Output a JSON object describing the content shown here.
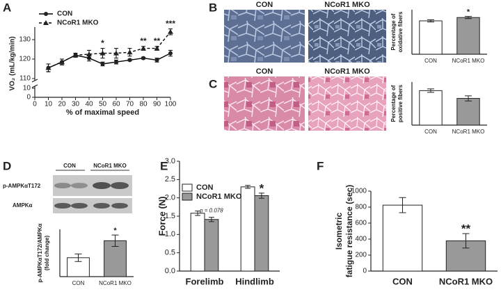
{
  "chart_data": [
    {
      "panel": "A",
      "type": "line",
      "y_label": "VO₂ (mL/kg/min)",
      "x_label": "% of maximal speed",
      "x": [
        10,
        20,
        30,
        40,
        50,
        60,
        70,
        80,
        90,
        100
      ],
      "xlim": [
        0,
        100
      ],
      "xticks": [
        0,
        10,
        20,
        30,
        40,
        50,
        60,
        70,
        80,
        90,
        100
      ],
      "ylim": [
        0,
        135
      ],
      "yticks": [
        0,
        10,
        110,
        120,
        130
      ],
      "axis_break": [
        10,
        110
      ],
      "legend": "upper left",
      "series": [
        {
          "name": "CON",
          "color": "#000000",
          "marker": "circle",
          "line_style": "solid",
          "values": [
            115.5,
            118.5,
            122,
            120.5,
            117.5,
            118.5,
            119.5,
            120.5,
            119.5,
            123
          ],
          "errors": [
            2,
            1.5,
            1,
            1.5,
            1,
            1,
            0.5,
            0.5,
            1,
            1.5
          ]
        },
        {
          "name": "NCoR1 MKO",
          "color": "#000000",
          "marker": "triangle",
          "line_style": "dashed",
          "values": [
            115.5,
            118.5,
            122,
            122.5,
            123,
            123,
            123.5,
            125.5,
            125.5,
            134
          ],
          "errors": [
            2,
            1.5,
            1,
            2,
            2.5,
            2.5,
            2,
            1,
            1,
            1.5
          ],
          "annotations": [
            null,
            null,
            null,
            null,
            "*",
            null,
            null,
            "**",
            "**",
            "***"
          ]
        }
      ]
    },
    {
      "panel": "B",
      "type": "bar",
      "image_labels": [
        "CON",
        "NCoR1 MKO"
      ],
      "y_label": [
        "Percentage of",
        "oxidative fibers"
      ],
      "categories": [
        "CON",
        "NCoR1 MKO"
      ],
      "values": [
        60,
        66
      ],
      "errors": [
        2,
        2
      ],
      "colors": [
        "#ffffff",
        "#999999"
      ],
      "ylim": [
        0,
        80
      ],
      "annotations": [
        null,
        "*"
      ]
    },
    {
      "panel": "C",
      "type": "bar",
      "image_labels": [
        "CON",
        "NCoR1 MKO"
      ],
      "y_label": [
        "Percentage of",
        "positive fibers"
      ],
      "categories": [
        "CON",
        "NCoR1 MKO"
      ],
      "values": [
        40,
        31
      ],
      "errors": [
        2,
        3
      ],
      "colors": [
        "#ffffff",
        "#999999"
      ],
      "ylim": [
        0,
        50
      ]
    },
    {
      "panel": "D",
      "type": "bar",
      "blot_headers": [
        "CON",
        "NCoR1 MKO"
      ],
      "blot_labels": [
        "p-AMPKαT172",
        "AMPKα"
      ],
      "y_label": [
        "p-AMPKαT172/AMPKα",
        "(fold change)"
      ],
      "categories": [
        "CON",
        "NCoR1 MKO"
      ],
      "values": [
        1.0,
        1.9
      ],
      "errors": [
        0.2,
        0.3
      ],
      "colors": [
        "#ffffff",
        "#999999"
      ],
      "ylim": [
        0,
        2.5
      ],
      "annotations": [
        null,
        "*"
      ]
    },
    {
      "panel": "E",
      "type": "bar",
      "y_label": "Force (N)",
      "categories": [
        "Forelimb",
        "Hindlimb"
      ],
      "ylim": [
        0,
        3
      ],
      "yticks": [
        {
          "value": 0,
          "label": "0.0"
        },
        {
          "value": 0.5,
          "label": "0.5"
        },
        {
          "value": 1,
          "label": "1.0"
        },
        {
          "value": 1.5,
          "label": "1.5"
        },
        {
          "value": 2,
          "label": "2.0"
        },
        {
          "value": 2.5,
          "label": "2.5"
        },
        {
          "value": 3,
          "label": "3.0"
        }
      ],
      "legend": "upper left",
      "series": [
        {
          "name": "CON",
          "color": "#ffffff",
          "values": [
            1.58,
            2.3
          ],
          "errors": [
            0.06,
            0.04
          ]
        },
        {
          "name": "NCoR1 MKO",
          "color": "#999999",
          "values": [
            1.41,
            2.06
          ],
          "errors": [
            0.06,
            0.07
          ],
          "annotations": [
            "p = 0.078",
            "*"
          ]
        }
      ]
    },
    {
      "panel": "F",
      "type": "bar",
      "y_label": [
        "Isometric",
        "fatigue resistance (sec)"
      ],
      "categories": [
        "CON",
        "NCoR1 MKO"
      ],
      "values": [
        825,
        378
      ],
      "errors": [
        95,
        90
      ],
      "colors": [
        "#ffffff",
        "#999999"
      ],
      "ylim": [
        0,
        1000
      ],
      "yticks": [
        0,
        200,
        400,
        600,
        800,
        1000
      ],
      "annotations": [
        null,
        "**"
      ]
    }
  ]
}
